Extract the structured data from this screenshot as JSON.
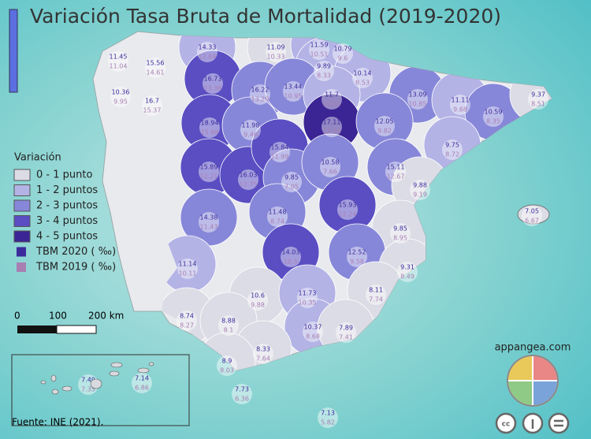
{
  "header": {
    "title": "Variación Tasa Bruta de Mortalidad (2019-2020)"
  },
  "legend": {
    "title": "Variación",
    "classes": [
      {
        "label": "0 - 1 punto",
        "color": "#dcdce6"
      },
      {
        "label": "1 - 2 puntos",
        "color": "#b3b3e6"
      },
      {
        "label": "2 - 3 puntos",
        "color": "#8787d9"
      },
      {
        "label": "3 - 4 puntos",
        "color": "#5a4ec2"
      },
      {
        "label": "4 - 5 puntos",
        "color": "#3b2594"
      }
    ],
    "tbm2020": {
      "label": "TBM 2020 ( ‰)",
      "color": "#3a2b9a"
    },
    "tbm2019": {
      "label": "TBM 2019 ( ‰)",
      "color": "#a77fb1"
    }
  },
  "scale": {
    "labels": [
      "0",
      "100",
      "200 km"
    ]
  },
  "provinces": [
    {
      "tbm2020": 11.45,
      "tbm2019": 11.04
    },
    {
      "tbm2020": 15.56,
      "tbm2019": 14.61
    },
    {
      "tbm2020": 14.33,
      "tbm2019": 12.64
    },
    {
      "tbm2020": 11.09,
      "tbm2019": 10.33
    },
    {
      "tbm2020": 11.59,
      "tbm2019": 10.51
    },
    {
      "tbm2020": 10.79,
      "tbm2019": 9.6
    },
    {
      "tbm2020": 9.89,
      "tbm2019": 8.33
    },
    {
      "tbm2020": 10.14,
      "tbm2019": 8.53
    },
    {
      "tbm2020": 10.36,
      "tbm2019": 9.95
    },
    {
      "tbm2020": 16.7,
      "tbm2019": 15.37
    },
    {
      "tbm2020": 16.73,
      "tbm2019": 13.36
    },
    {
      "tbm2020": 16.22,
      "tbm2019": 13.29
    },
    {
      "tbm2020": 13.44,
      "tbm2019": 10.95
    },
    {
      "tbm2020": 11.7,
      "tbm2019": 10.01
    },
    {
      "tbm2020": 13.09,
      "tbm2019": 10.85
    },
    {
      "tbm2020": 11.11,
      "tbm2019": 9.68
    },
    {
      "tbm2020": 10.59,
      "tbm2019": 8.35
    },
    {
      "tbm2020": 9.37,
      "tbm2019": 8.51
    },
    {
      "tbm2020": 18.94,
      "tbm2019": 15.68
    },
    {
      "tbm2020": 11.98,
      "tbm2019": 9.46
    },
    {
      "tbm2020": 17.11,
      "tbm2019": 12.78
    },
    {
      "tbm2020": 12.05,
      "tbm2019": 9.82
    },
    {
      "tbm2020": 9.75,
      "tbm2019": 8.72
    },
    {
      "tbm2020": 15.89,
      "tbm2019": 12.21
    },
    {
      "tbm2020": 16.03,
      "tbm2019": 12.75
    },
    {
      "tbm2020": 15.84,
      "tbm2019": 11.99
    },
    {
      "tbm2020": 9.85,
      "tbm2019": 7.05
    },
    {
      "tbm2020": 10.58,
      "tbm2019": 7.66
    },
    {
      "tbm2020": 15.11,
      "tbm2019": 12.67
    },
    {
      "tbm2020": 9.88,
      "tbm2019": 9.19
    },
    {
      "tbm2020": 14.38,
      "tbm2019": 11.43
    },
    {
      "tbm2020": 11.48,
      "tbm2019": 8.74
    },
    {
      "tbm2020": 15.93,
      "tbm2019": 12.24
    },
    {
      "tbm2020": 9.85,
      "tbm2019": 8.95
    },
    {
      "tbm2020": 7.05,
      "tbm2019": 6.67
    },
    {
      "tbm2020": 11.14,
      "tbm2019": 10.11
    },
    {
      "tbm2020": 14.03,
      "tbm2019": 10.5
    },
    {
      "tbm2020": 12.52,
      "tbm2019": 9.58
    },
    {
      "tbm2020": 9.31,
      "tbm2019": 8.49
    },
    {
      "tbm2020": 8.11,
      "tbm2019": 7.74
    },
    {
      "tbm2020": 8.74,
      "tbm2019": 8.27
    },
    {
      "tbm2020": 10.6,
      "tbm2019": 9.88
    },
    {
      "tbm2020": 11.73,
      "tbm2019": 10.35
    },
    {
      "tbm2020": 8.88,
      "tbm2019": 8.1
    },
    {
      "tbm2020": 10.37,
      "tbm2019": 8.68
    },
    {
      "tbm2020": 7.89,
      "tbm2019": 7.41
    },
    {
      "tbm2020": 8.33,
      "tbm2019": 7.64
    },
    {
      "tbm2020": 8.9,
      "tbm2019": 8.03
    },
    {
      "tbm2020": 7.49,
      "tbm2019": 7.35
    },
    {
      "tbm2020": 7.14,
      "tbm2019": 6.86
    },
    {
      "tbm2020": 7.73,
      "tbm2019": 6.36
    },
    {
      "tbm2020": 7.13,
      "tbm2019": 5.82
    }
  ],
  "footer": {
    "source": "Fuente: INE (2021).",
    "brand": "appangea.com"
  }
}
